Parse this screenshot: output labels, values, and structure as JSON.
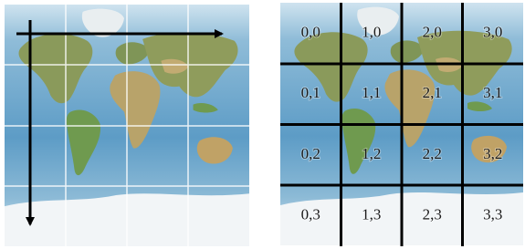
{
  "tiles": {
    "rows": [
      [
        "0,0",
        "1,0",
        "2,0",
        "3,0"
      ],
      [
        "0,1",
        "1,1",
        "2,1",
        "3,1"
      ],
      [
        "0,2",
        "1,2",
        "2,2",
        "3,2"
      ],
      [
        "0,3",
        "1,3",
        "2,3",
        "3,3"
      ]
    ]
  }
}
